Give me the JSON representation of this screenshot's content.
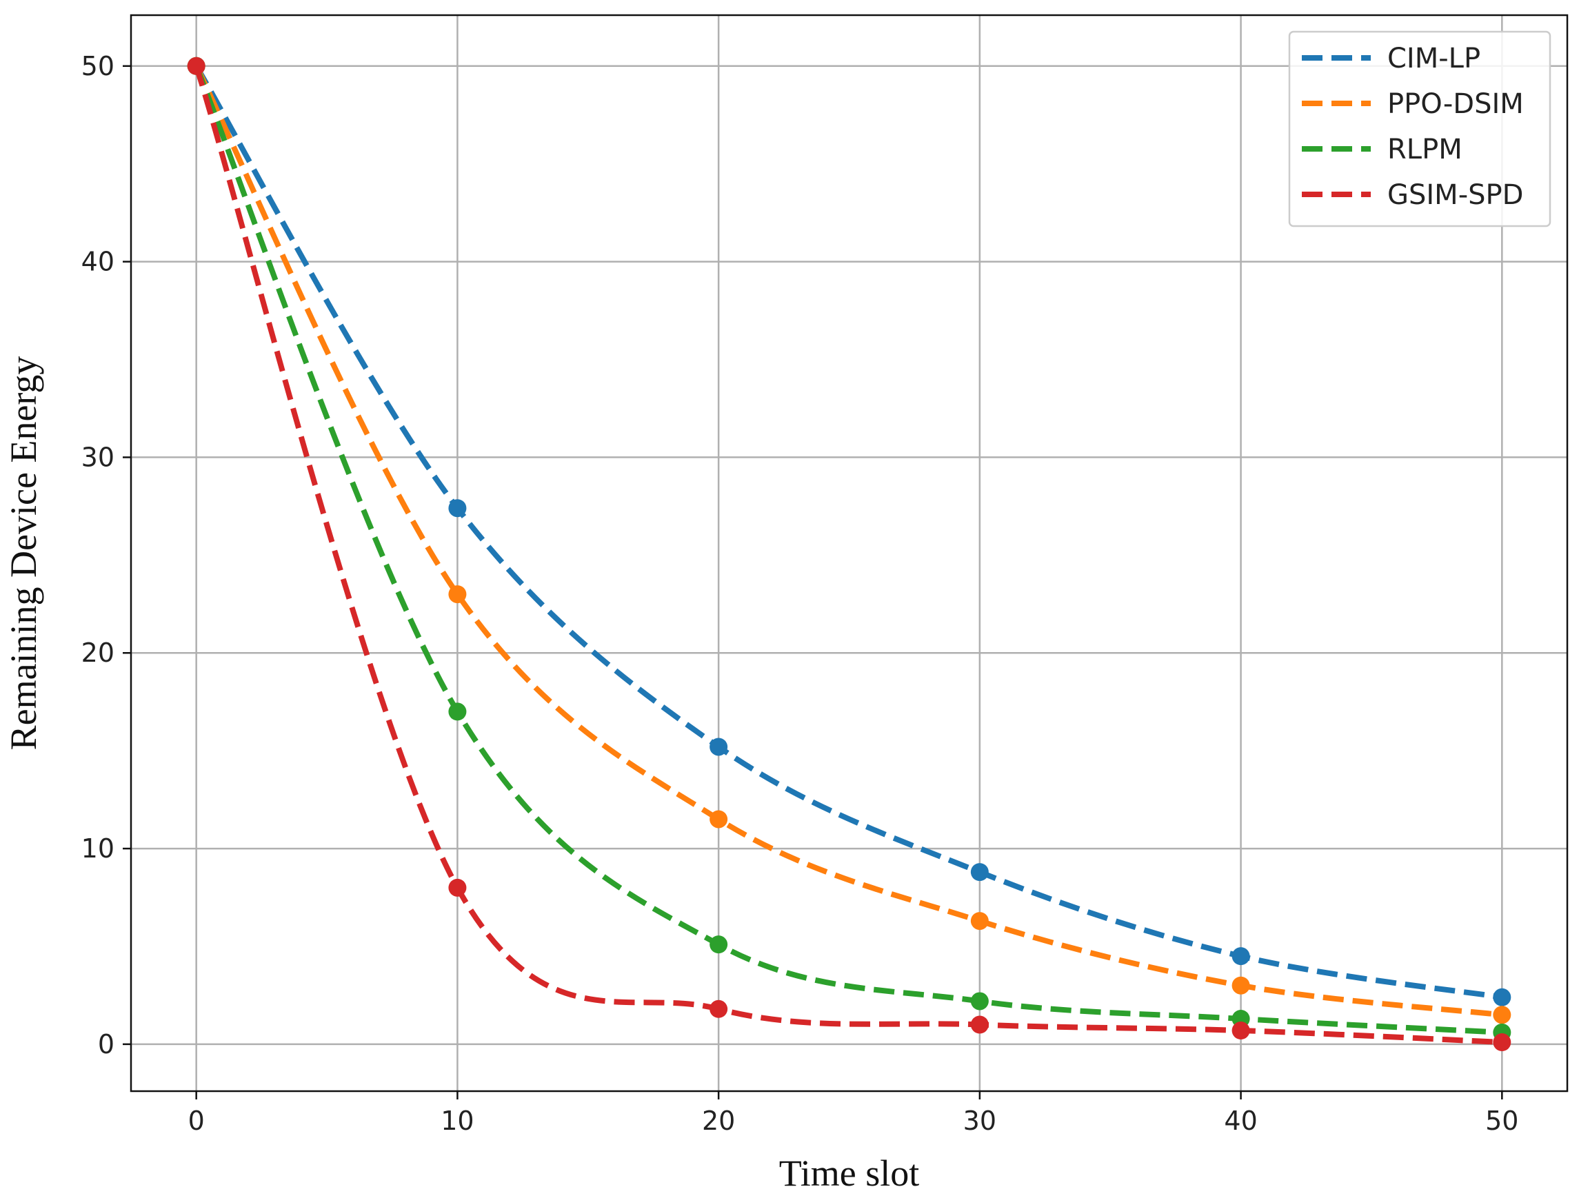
{
  "chart_data": {
    "type": "line",
    "xlabel": "Time slot",
    "ylabel": "Remaining Device Energy",
    "xlim": [
      -2.5,
      52.5
    ],
    "ylim": [
      -2.4,
      52.6
    ],
    "xticks": [
      0,
      10,
      20,
      30,
      40,
      50
    ],
    "yticks": [
      0,
      10,
      20,
      30,
      40,
      50
    ],
    "xtick_labels": [
      "0",
      "10",
      "20",
      "30",
      "40",
      "50"
    ],
    "ytick_labels": [
      "0",
      "10",
      "20",
      "30",
      "40",
      "50"
    ],
    "grid": true,
    "legend_position": "top-right",
    "line_style": "dashed",
    "x": [
      0,
      10,
      20,
      30,
      40,
      50
    ],
    "series": [
      {
        "name": "CIM-LP",
        "color": "#1f77b4",
        "values": [
          50,
          27.4,
          15.2,
          8.8,
          4.5,
          2.4
        ]
      },
      {
        "name": "PPO-DSIM",
        "color": "#ff7f0e",
        "values": [
          50,
          23.0,
          11.5,
          6.3,
          3.0,
          1.5
        ]
      },
      {
        "name": "RLPM",
        "color": "#2ca02c",
        "values": [
          50,
          17.0,
          5.1,
          2.2,
          1.3,
          0.6
        ]
      },
      {
        "name": "GSIM-SPD",
        "color": "#d62728",
        "values": [
          50,
          8.0,
          1.8,
          1.0,
          0.7,
          0.1
        ]
      }
    ]
  }
}
